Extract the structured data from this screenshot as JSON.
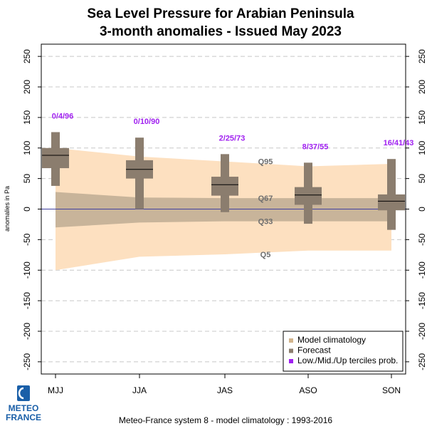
{
  "chart_data": {
    "type": "box",
    "title_line1": "Sea Level Pressure  for  Arabian Peninsula",
    "title_line2": "3-month anomalies    -    Issued May 2023",
    "ylabel": "anomalies in Pa",
    "ylim": [
      -270,
      270
    ],
    "yticks": [
      -250,
      -200,
      -150,
      -100,
      -50,
      0,
      50,
      100,
      150,
      200,
      250
    ],
    "categories": [
      "MJJ",
      "JJA",
      "JAS",
      "ASO",
      "SON"
    ],
    "grid": "horizontal-dashed",
    "climatology": {
      "Q5": [
        -100,
        -78,
        -74,
        -68,
        -68
      ],
      "Q33": [
        -30,
        -22,
        -20,
        -20,
        -20
      ],
      "Q67": [
        28,
        19,
        18,
        18,
        18
      ],
      "Q95": [
        100,
        86,
        78,
        70,
        74
      ]
    },
    "climatology_labels": [
      "Q95",
      "Q67",
      "Q33",
      "Q5"
    ],
    "forecast": [
      {
        "category": "MJJ",
        "min": 38,
        "q25": 67,
        "median": 88,
        "q75": 100,
        "max": 126
      },
      {
        "category": "JJA",
        "min": 0,
        "q25": 50,
        "median": 65,
        "q75": 80,
        "max": 117
      },
      {
        "category": "JAS",
        "min": -5,
        "q25": 22,
        "median": 40,
        "q75": 53,
        "max": 90
      },
      {
        "category": "ASO",
        "min": -24,
        "q25": 7,
        "median": 23,
        "q75": 36,
        "max": 76
      },
      {
        "category": "SON",
        "min": -34,
        "q25": -2,
        "median": 13,
        "q75": 24,
        "max": 82
      }
    ],
    "tercile_probs": [
      "0/4/96",
      "0/10/90",
      "2/25/73",
      "8/37/55",
      "16/41/43"
    ],
    "legend_position": "bottom-right",
    "legend": [
      {
        "label": "Model climatology",
        "color": "#d2b48c"
      },
      {
        "label": "Forecast",
        "color": "#8b7d6e"
      },
      {
        "label": "Low./Mid./Up terciles prob.",
        "color": "#a020f0"
      }
    ],
    "colors": {
      "outer_band": "#fde0c0",
      "inner_band": "#c8b49a",
      "box": "#8b7d6e",
      "zero_line": "#4040a0",
      "tercile_text": "#a020f0",
      "quantile_text": "#6e6e6e",
      "grid": "#c8c8c8"
    }
  },
  "footer": "Meteo-France system 8  -  model climatology : 1993-2016",
  "logo": {
    "line1": "METEO",
    "line2": "FRANCE",
    "icon": "meteo-france-logo-icon"
  }
}
